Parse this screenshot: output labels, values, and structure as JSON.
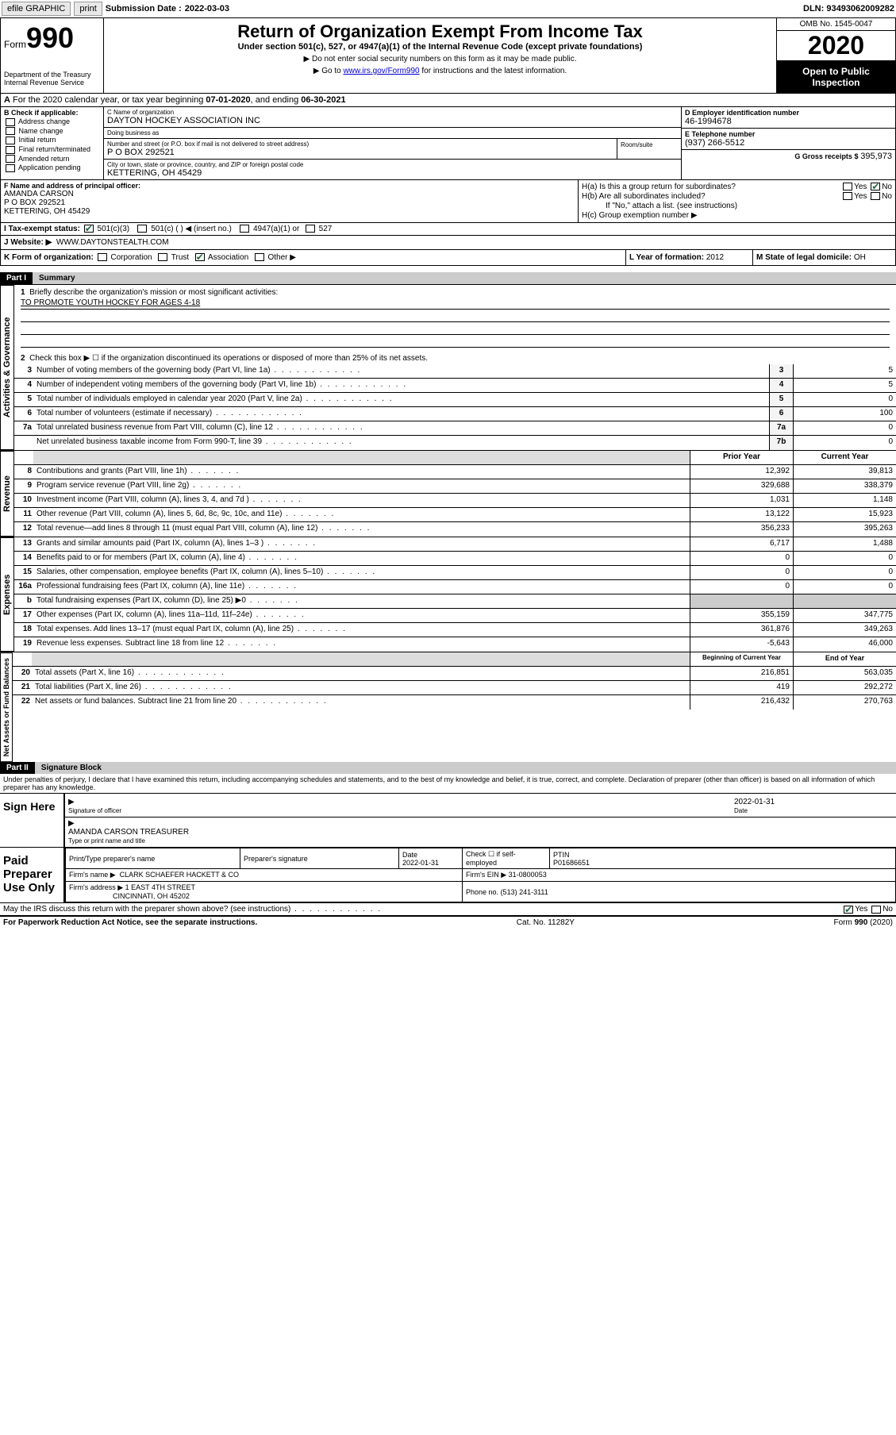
{
  "topbar": {
    "efile": "efile GRAPHIC",
    "print": "print",
    "submission_label": "Submission Date :",
    "submission_date": "2022-03-03",
    "dln_label": "DLN:",
    "dln": "93493062009282"
  },
  "header": {
    "form_label": "Form",
    "form_number": "990",
    "dept": "Department of the Treasury\nInternal Revenue Service",
    "title": "Return of Organization Exempt From Income Tax",
    "subtitle": "Under section 501(c), 527, or 4947(a)(1) of the Internal Revenue Code (except private foundations)",
    "note1": "Do not enter social security numbers on this form as it may be made public.",
    "note2_prefix": "Go to ",
    "note2_link": "www.irs.gov/Form990",
    "note2_suffix": " for instructions and the latest information.",
    "omb": "OMB No. 1545-0047",
    "year": "2020",
    "open_public": "Open to Public Inspection"
  },
  "line_a": {
    "text": "For the 2020 calendar year, or tax year beginning ",
    "begin": "07-01-2020",
    "mid": ", and ending ",
    "end": "06-30-2021"
  },
  "col_b": {
    "header": "B Check if applicable:",
    "items": [
      "Address change",
      "Name change",
      "Initial return",
      "Final return/terminated",
      "Amended return",
      "Application pending"
    ]
  },
  "col_c": {
    "name_lbl": "C Name of organization",
    "name": "DAYTON HOCKEY ASSOCIATION INC",
    "dba_lbl": "Doing business as",
    "dba": "",
    "addr_lbl": "Number and street (or P.O. box if mail is not delivered to street address)",
    "addr": "P O BOX 292521",
    "room_lbl": "Room/suite",
    "city_lbl": "City or town, state or province, country, and ZIP or foreign postal code",
    "city": "KETTERING, OH  45429"
  },
  "col_d": {
    "ein_lbl": "D Employer identification number",
    "ein": "46-1994678",
    "phone_lbl": "E Telephone number",
    "phone": "(937) 266-5512",
    "gross_lbl": "G Gross receipts $",
    "gross": "395,973"
  },
  "col_f": {
    "lbl": "F Name and address of principal officer:",
    "name": "AMANDA CARSON",
    "addr1": "P O BOX 292521",
    "addr2": "KETTERING, OH  45429"
  },
  "col_h": {
    "ha": "H(a)  Is this a group return for subordinates?",
    "hb": "H(b)  Are all subordinates included?",
    "hb_note": "If \"No,\" attach a list. (see instructions)",
    "hc": "H(c)  Group exemption number ▶"
  },
  "row_i": {
    "lbl": "I  Tax-exempt status:",
    "opts": [
      "501(c)(3)",
      "501(c) (  ) ◀ (insert no.)",
      "4947(a)(1) or",
      "527"
    ]
  },
  "row_j": {
    "lbl": "J  Website: ▶",
    "val": "WWW.DAYTONSTEALTH.COM"
  },
  "row_k": {
    "lbl": "K Form of organization:",
    "opts": [
      "Corporation",
      "Trust",
      "Association",
      "Other ▶"
    ],
    "l_lbl": "L Year of formation:",
    "l_val": "2012",
    "m_lbl": "M State of legal domicile:",
    "m_val": "OH"
  },
  "part1": {
    "header": "Part I",
    "title": "Summary"
  },
  "governance": {
    "label": "Activities & Governance",
    "line1_lbl": "Briefly describe the organization's mission or most significant activities:",
    "line1_val": "TO PROMOTE YOUTH HOCKEY FOR AGES 4-18",
    "line2": "Check this box ▶ ☐  if the organization discontinued its operations or disposed of more than 25% of its net assets.",
    "rows": [
      {
        "n": "3",
        "t": "Number of voting members of the governing body (Part VI, line 1a)",
        "b": "3",
        "v": "5"
      },
      {
        "n": "4",
        "t": "Number of independent voting members of the governing body (Part VI, line 1b)",
        "b": "4",
        "v": "5"
      },
      {
        "n": "5",
        "t": "Total number of individuals employed in calendar year 2020 (Part V, line 2a)",
        "b": "5",
        "v": "0"
      },
      {
        "n": "6",
        "t": "Total number of volunteers (estimate if necessary)",
        "b": "6",
        "v": "100"
      },
      {
        "n": "7a",
        "t": "Total unrelated business revenue from Part VIII, column (C), line 12",
        "b": "7a",
        "v": "0"
      },
      {
        "n": "",
        "t": "Net unrelated business taxable income from Form 990-T, line 39",
        "b": "7b",
        "v": "0"
      }
    ]
  },
  "revenue": {
    "label": "Revenue",
    "head_prior": "Prior Year",
    "head_current": "Current Year",
    "rows": [
      {
        "n": "8",
        "t": "Contributions and grants (Part VIII, line 1h)",
        "p": "12,392",
        "c": "39,813"
      },
      {
        "n": "9",
        "t": "Program service revenue (Part VIII, line 2g)",
        "p": "329,688",
        "c": "338,379"
      },
      {
        "n": "10",
        "t": "Investment income (Part VIII, column (A), lines 3, 4, and 7d )",
        "p": "1,031",
        "c": "1,148"
      },
      {
        "n": "11",
        "t": "Other revenue (Part VIII, column (A), lines 5, 6d, 8c, 9c, 10c, and 11e)",
        "p": "13,122",
        "c": "15,923"
      },
      {
        "n": "12",
        "t": "Total revenue—add lines 8 through 11 (must equal Part VIII, column (A), line 12)",
        "p": "356,233",
        "c": "395,263"
      }
    ]
  },
  "expenses": {
    "label": "Expenses",
    "rows": [
      {
        "n": "13",
        "t": "Grants and similar amounts paid (Part IX, column (A), lines 1–3 )",
        "p": "6,717",
        "c": "1,488"
      },
      {
        "n": "14",
        "t": "Benefits paid to or for members (Part IX, column (A), line 4)",
        "p": "0",
        "c": "0"
      },
      {
        "n": "15",
        "t": "Salaries, other compensation, employee benefits (Part IX, column (A), lines 5–10)",
        "p": "0",
        "c": "0"
      },
      {
        "n": "16a",
        "t": "Professional fundraising fees (Part IX, column (A), line 11e)",
        "p": "0",
        "c": "0"
      },
      {
        "n": "b",
        "t": "Total fundraising expenses (Part IX, column (D), line 25) ▶0",
        "p": "",
        "c": "",
        "grey": true
      },
      {
        "n": "17",
        "t": "Other expenses (Part IX, column (A), lines 11a–11d, 11f–24e)",
        "p": "355,159",
        "c": "347,775"
      },
      {
        "n": "18",
        "t": "Total expenses. Add lines 13–17 (must equal Part IX, column (A), line 25)",
        "p": "361,876",
        "c": "349,263"
      },
      {
        "n": "19",
        "t": "Revenue less expenses. Subtract line 18 from line 12",
        "p": "-5,643",
        "c": "46,000"
      }
    ]
  },
  "netassets": {
    "label": "Net Assets or Fund Balances",
    "head_begin": "Beginning of Current Year",
    "head_end": "End of Year",
    "rows": [
      {
        "n": "20",
        "t": "Total assets (Part X, line 16)",
        "p": "216,851",
        "c": "563,035"
      },
      {
        "n": "21",
        "t": "Total liabilities (Part X, line 26)",
        "p": "419",
        "c": "292,272"
      },
      {
        "n": "22",
        "t": "Net assets or fund balances. Subtract line 21 from line 20",
        "p": "216,432",
        "c": "270,763"
      }
    ]
  },
  "part2": {
    "header": "Part II",
    "title": "Signature Block",
    "declaration": "Under penalties of perjury, I declare that I have examined this return, including accompanying schedules and statements, and to the best of my knowledge and belief, it is true, correct, and complete. Declaration of preparer (other than officer) is based on all information of which preparer has any knowledge."
  },
  "sign": {
    "label": "Sign Here",
    "sig_officer": "Signature of officer",
    "date": "2022-01-31",
    "date_lbl": "Date",
    "name": "AMANDA CARSON TREASURER",
    "name_lbl": "Type or print name and title"
  },
  "preparer": {
    "label": "Paid Preparer Use Only",
    "print_name_lbl": "Print/Type preparer's name",
    "sig_lbl": "Preparer's signature",
    "date_lbl": "Date",
    "date": "2022-01-31",
    "check_lbl": "Check ☐ if self-employed",
    "ptin_lbl": "PTIN",
    "ptin": "P01686651",
    "firm_name_lbl": "Firm's name   ▶",
    "firm_name": "CLARK SCHAEFER HACKETT & CO",
    "firm_ein_lbl": "Firm's EIN ▶",
    "firm_ein": "31-0800053",
    "firm_addr_lbl": "Firm's address ▶",
    "firm_addr1": "1 EAST 4TH STREET",
    "firm_addr2": "CINCINNATI, OH  45202",
    "phone_lbl": "Phone no.",
    "phone": "(513) 241-3111"
  },
  "footer": {
    "discuss": "May the IRS discuss this return with the preparer shown above? (see instructions)",
    "paperwork": "For Paperwork Reduction Act Notice, see the separate instructions.",
    "cat": "Cat. No. 11282Y",
    "form": "Form 990 (2020)"
  }
}
